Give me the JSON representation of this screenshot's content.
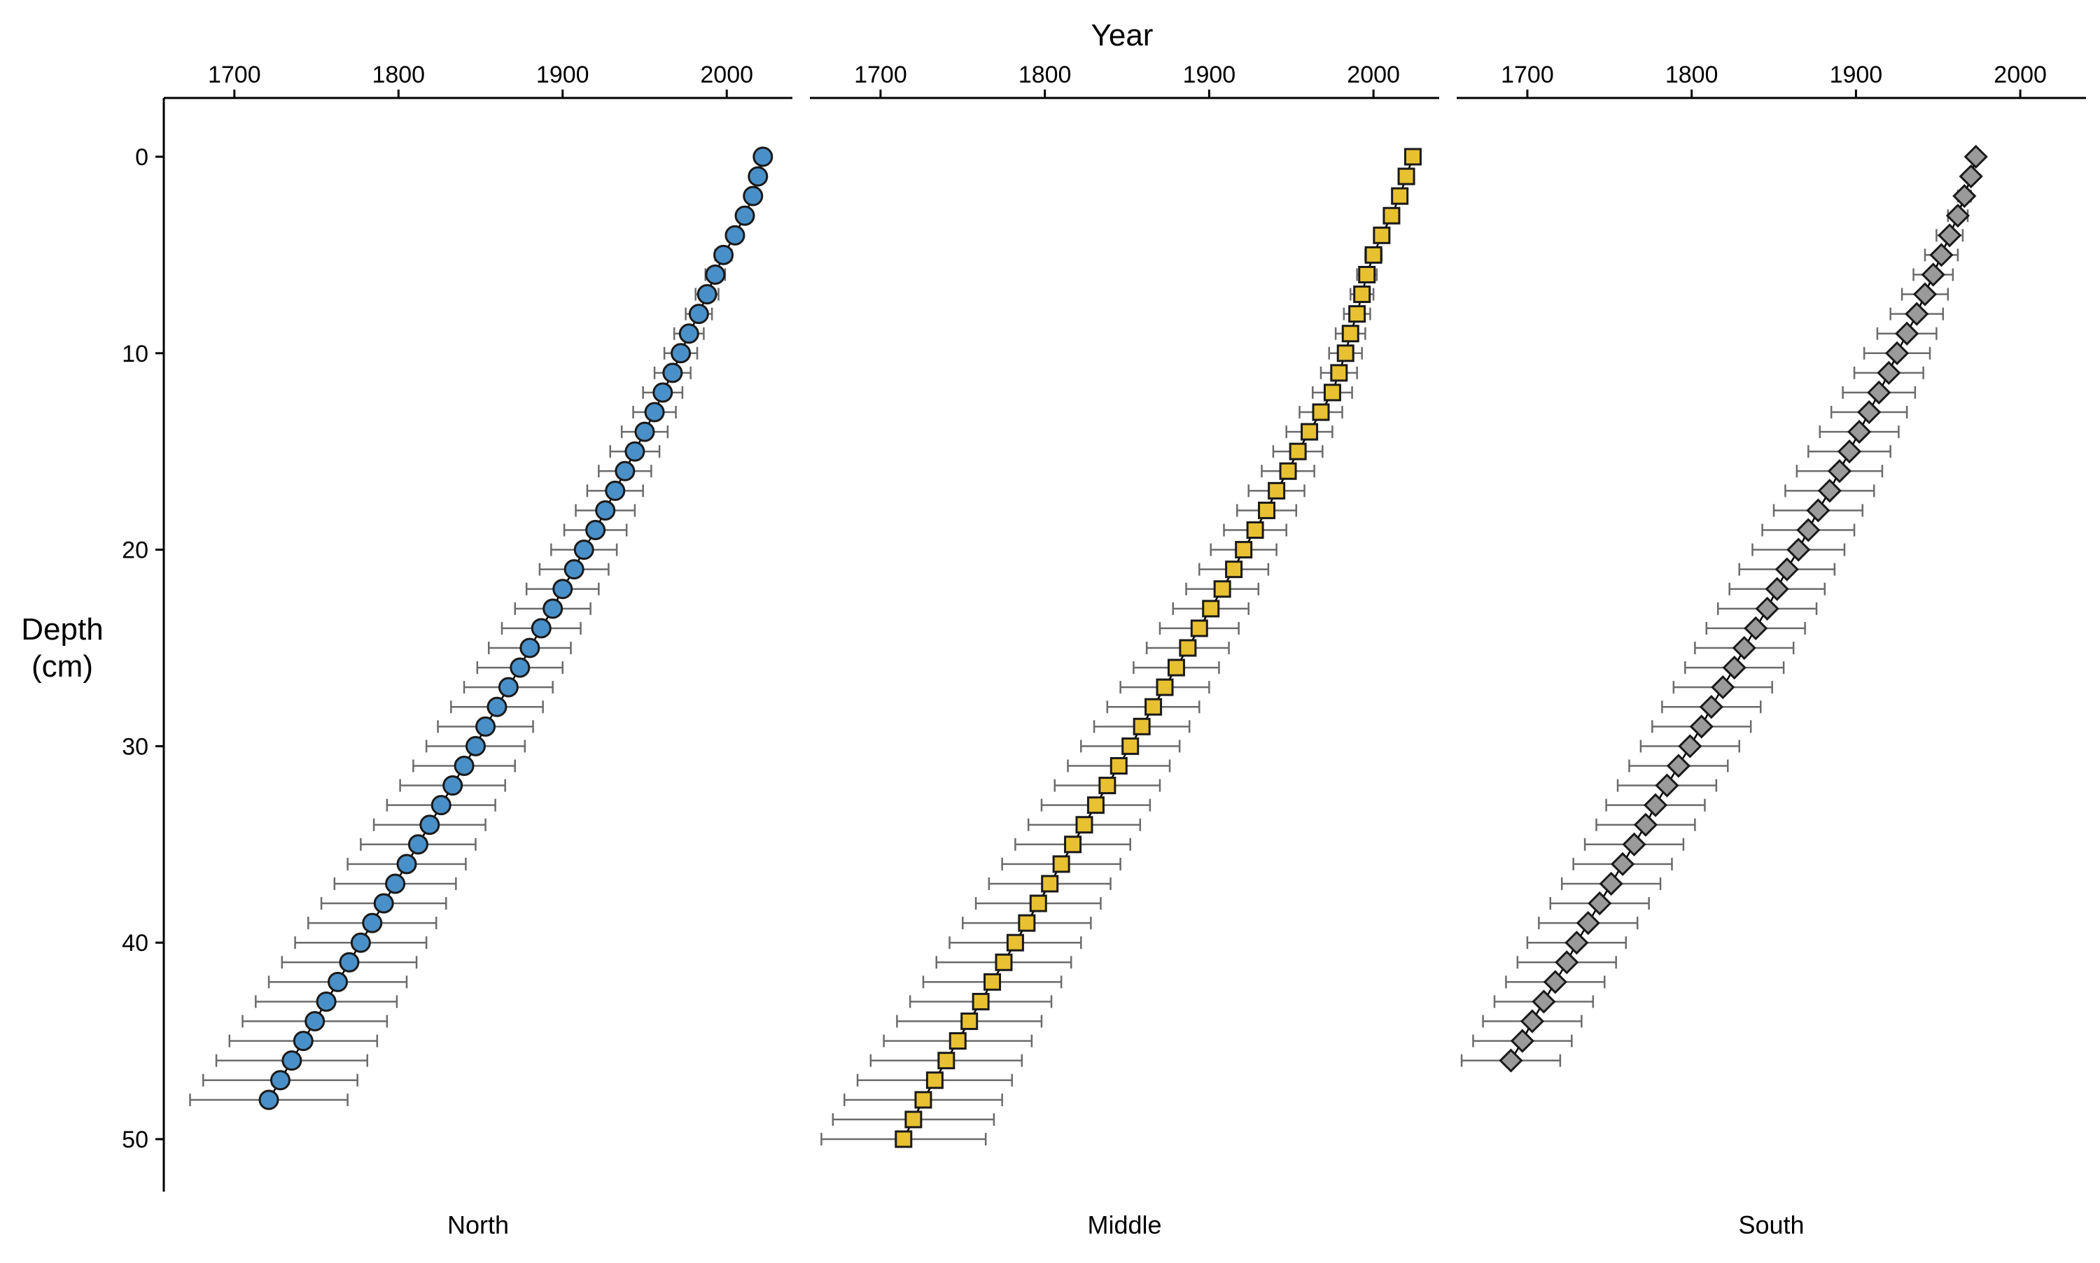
{
  "chart_data": {
    "type": "scatter",
    "x_axis_title": "Year",
    "y_axis_title_line1": "Depth",
    "y_axis_title_line2": "(cm)",
    "y_ticks": [
      0,
      10,
      20,
      30,
      40,
      50
    ],
    "y_range": [
      -3,
      53
    ],
    "x_ticks": [
      1700,
      1800,
      1900,
      2000
    ],
    "x_range": [
      1657,
      2040
    ],
    "grid": false,
    "legend": "none",
    "panels": [
      {
        "name": "North",
        "marker": "circle",
        "color": "#4a90c8",
        "ages": [
          2022,
          2019,
          2016,
          2011,
          2005,
          1998,
          1993,
          1988,
          1983,
          1977,
          1972,
          1967,
          1961,
          1956,
          1950,
          1944,
          1938,
          1932,
          1926,
          1920,
          1913,
          1907,
          1900,
          1894,
          1887,
          1880,
          1874,
          1867,
          1860,
          1853,
          1847,
          1840,
          1833,
          1826,
          1819,
          1812,
          1805,
          1798,
          1791,
          1784,
          1777,
          1770,
          1763,
          1756,
          1749,
          1742,
          1735,
          1728,
          1721
        ],
        "errors": [
          0,
          1,
          2,
          3,
          4,
          5,
          6,
          7,
          8,
          9,
          10,
          11,
          12,
          13,
          14,
          15,
          16,
          17,
          18,
          19,
          20,
          21,
          22,
          23,
          24,
          25,
          26,
          27,
          28,
          29,
          30,
          31,
          32,
          33,
          34,
          35,
          36,
          37,
          38,
          39,
          40,
          41,
          42,
          43,
          44,
          45,
          46,
          47,
          48
        ]
      },
      {
        "name": "Middle",
        "marker": "square",
        "color": "#e8c132",
        "ages": [
          2024,
          2020,
          2016,
          2011,
          2005,
          2000,
          1996,
          1993,
          1990,
          1986,
          1983,
          1979,
          1975,
          1968,
          1961,
          1954,
          1948,
          1941,
          1935,
          1928,
          1921,
          1915,
          1908,
          1901,
          1894,
          1887,
          1880,
          1873,
          1866,
          1859,
          1852,
          1845,
          1838,
          1831,
          1824,
          1817,
          1810,
          1803,
          1796,
          1789,
          1782,
          1775,
          1768,
          1761,
          1754,
          1747,
          1740,
          1733,
          1726,
          1720,
          1714
        ],
        "errors": [
          0,
          1,
          2,
          3,
          4,
          5,
          6,
          7,
          8,
          9,
          10,
          11,
          12,
          13,
          14,
          15,
          16,
          17,
          18,
          19,
          20,
          21,
          22,
          23,
          24,
          25,
          26,
          27,
          28,
          29,
          30,
          31,
          32,
          33,
          34,
          35,
          36,
          37,
          38,
          39,
          40,
          41,
          42,
          43,
          44,
          45,
          46,
          47,
          48,
          49,
          50
        ]
      },
      {
        "name": "South",
        "marker": "diamond",
        "color": "#9a9a9a",
        "ages": [
          1973,
          1970,
          1966,
          1962,
          1957,
          1952,
          1947,
          1942,
          1937,
          1931,
          1925,
          1920,
          1914,
          1908,
          1902,
          1896,
          1890,
          1884,
          1877,
          1871,
          1865,
          1858,
          1852,
          1846,
          1839,
          1832,
          1826,
          1819,
          1812,
          1806,
          1799,
          1792,
          1785,
          1778,
          1772,
          1765,
          1758,
          1751,
          1744,
          1737,
          1730,
          1724,
          1717,
          1710,
          1703,
          1697,
          1690
        ],
        "errors": [
          0,
          2,
          4,
          6,
          8,
          10,
          12,
          14,
          16,
          18,
          20,
          21,
          22,
          23,
          24,
          25,
          26,
          27,
          27,
          28,
          28,
          29,
          29,
          30,
          30,
          30,
          30,
          30,
          30,
          30,
          30,
          30,
          30,
          30,
          30,
          30,
          30,
          30,
          30,
          30,
          30,
          30,
          30,
          30,
          30,
          30,
          30
        ]
      }
    ]
  }
}
